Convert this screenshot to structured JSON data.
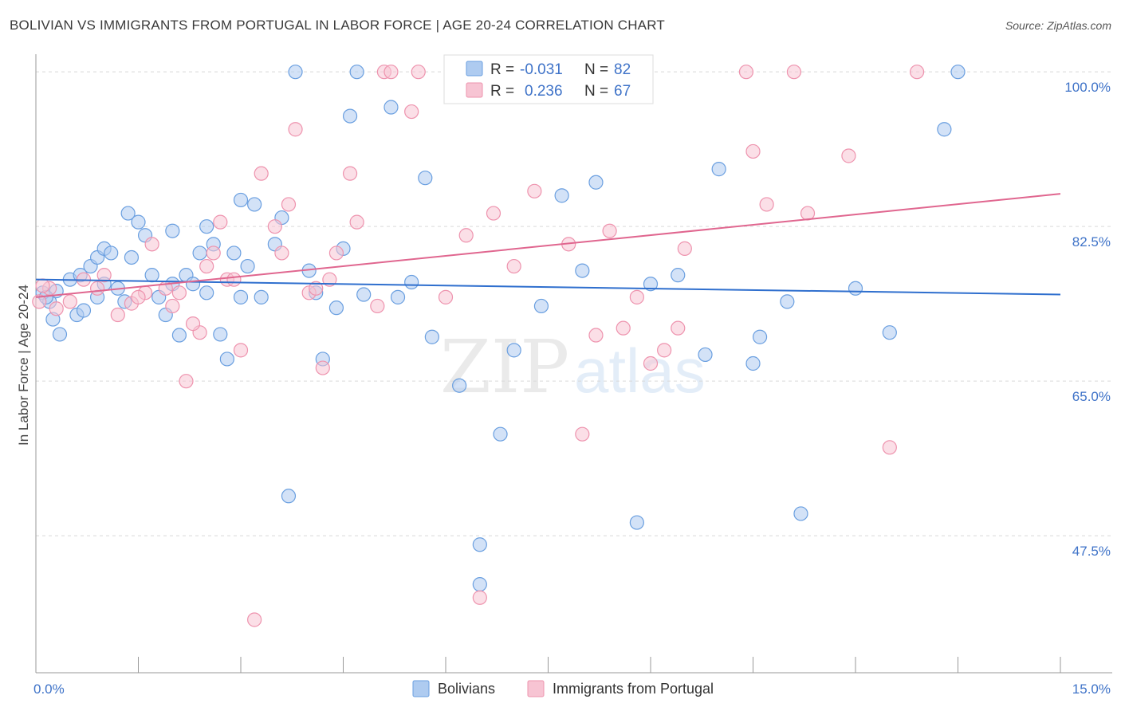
{
  "title": "BOLIVIAN VS IMMIGRANTS FROM PORTUGAL IN LABOR FORCE | AGE 20-24 CORRELATION CHART",
  "source": "Source: ZipAtlas.com",
  "watermark": {
    "zip": "ZIP",
    "atlas": "atlas"
  },
  "colors": {
    "blue_fill": "#aecbf0",
    "blue_stroke": "#6a9fe0",
    "blue_line": "#2f6fce",
    "pink_fill": "#f7c4d3",
    "pink_stroke": "#ee93ae",
    "pink_line": "#e0668f",
    "tick_color": "#3f73c8",
    "grid": "#d9d9d9"
  },
  "stats": {
    "r_label": "R =",
    "n_label": "N =",
    "rows": [
      {
        "r": "-0.031",
        "n": "82"
      },
      {
        "r": "0.236",
        "n": "67"
      }
    ]
  },
  "chart_data": {
    "type": "scatter",
    "title": "BOLIVIAN VS IMMIGRANTS FROM PORTUGAL IN LABOR FORCE | AGE 20-24 CORRELATION CHART",
    "ylabel": "In Labor Force | Age 20-24",
    "xlabel": "",
    "xlim": [
      0,
      15
    ],
    "ylim": [
      32,
      102
    ],
    "x_tick_labels": [
      "0.0%",
      "15.0%"
    ],
    "y_ticks": [
      47.5,
      65.0,
      82.5,
      100.0
    ],
    "y_tick_labels": [
      "47.5%",
      "65.0%",
      "82.5%",
      "100.0%"
    ],
    "grid": "horizontal dashed",
    "legend": [
      "Bolivians",
      "Immigrants from Portugal"
    ],
    "series": [
      {
        "name": "Bolivians",
        "trend": {
          "x": [
            0,
            15
          ],
          "y": [
            76.5,
            74.8
          ]
        },
        "points": [
          [
            0.1,
            75
          ],
          [
            0.2,
            74
          ],
          [
            0.3,
            75.2
          ],
          [
            0.25,
            72
          ],
          [
            0.5,
            76.5
          ],
          [
            0.35,
            70.3
          ],
          [
            0.6,
            72.5
          ],
          [
            0.8,
            78
          ],
          [
            0.9,
            79
          ],
          [
            1.0,
            80
          ],
          [
            1.1,
            79.5
          ],
          [
            1.2,
            75.5
          ],
          [
            0.7,
            73
          ],
          [
            0.65,
            77
          ],
          [
            1.35,
            84
          ],
          [
            1.5,
            83
          ],
          [
            1.6,
            81.5
          ],
          [
            1.7,
            77
          ],
          [
            1.8,
            74.5
          ],
          [
            1.9,
            72.5
          ],
          [
            2.0,
            82
          ],
          [
            2.1,
            70.2
          ],
          [
            2.2,
            77
          ],
          [
            2.3,
            76
          ],
          [
            2.4,
            79.5
          ],
          [
            2.5,
            82.5
          ],
          [
            2.6,
            80.5
          ],
          [
            2.7,
            70.3
          ],
          [
            2.8,
            67.5
          ],
          [
            2.9,
            79.5
          ],
          [
            3.0,
            74.5
          ],
          [
            3.1,
            78
          ],
          [
            3.2,
            85
          ],
          [
            3.3,
            74.5
          ],
          [
            3.5,
            80.5
          ],
          [
            3.6,
            83.5
          ],
          [
            3.7,
            52
          ],
          [
            3.8,
            100
          ],
          [
            4.0,
            77.5
          ],
          [
            4.1,
            75
          ],
          [
            4.2,
            67.5
          ],
          [
            4.4,
            73.3
          ],
          [
            4.5,
            80
          ],
          [
            4.6,
            95
          ],
          [
            4.8,
            74.8
          ],
          [
            4.7,
            100
          ],
          [
            5.2,
            96
          ],
          [
            5.3,
            74.5
          ],
          [
            5.5,
            76.2
          ],
          [
            5.8,
            70
          ],
          [
            6.2,
            64.5
          ],
          [
            6.5,
            46.5
          ],
          [
            6.8,
            59
          ],
          [
            6.9,
            100
          ],
          [
            7.0,
            68.5
          ],
          [
            7.4,
            73.5
          ],
          [
            7.7,
            86
          ],
          [
            8.2,
            87.5
          ],
          [
            8.8,
            49
          ],
          [
            9.0,
            76
          ],
          [
            9.4,
            77
          ],
          [
            9.8,
            68
          ],
          [
            10.0,
            89
          ],
          [
            10.6,
            70
          ],
          [
            11.0,
            74
          ],
          [
            11.2,
            50
          ],
          [
            12.5,
            70.5
          ],
          [
            13.5,
            100
          ],
          [
            13.3,
            93.5
          ],
          [
            12.0,
            75.5
          ],
          [
            0.15,
            74.5
          ],
          [
            1.4,
            79
          ],
          [
            2.0,
            76
          ],
          [
            3.0,
            85.5
          ],
          [
            6.5,
            42
          ],
          [
            5.7,
            88
          ],
          [
            8.0,
            77.5
          ],
          [
            10.5,
            67
          ],
          [
            1.0,
            76
          ],
          [
            2.5,
            75
          ],
          [
            0.9,
            74.5
          ],
          [
            1.3,
            74
          ]
        ]
      },
      {
        "name": "Immigrants from Portugal",
        "trend": {
          "x": [
            0,
            15
          ],
          "y": [
            74.5,
            86.2
          ]
        },
        "points": [
          [
            0.05,
            74
          ],
          [
            0.2,
            75.5
          ],
          [
            0.5,
            74
          ],
          [
            0.7,
            76.5
          ],
          [
            0.9,
            75.5
          ],
          [
            1.0,
            77
          ],
          [
            1.2,
            72.5
          ],
          [
            1.4,
            73.8
          ],
          [
            1.6,
            75
          ],
          [
            1.7,
            80.5
          ],
          [
            1.9,
            75.5
          ],
          [
            2.0,
            73.5
          ],
          [
            2.2,
            65
          ],
          [
            2.4,
            70.5
          ],
          [
            2.3,
            71.5
          ],
          [
            2.5,
            78
          ],
          [
            2.6,
            79.5
          ],
          [
            2.7,
            83
          ],
          [
            2.8,
            76.5
          ],
          [
            3.0,
            68.5
          ],
          [
            3.2,
            38
          ],
          [
            3.3,
            88.5
          ],
          [
            3.5,
            82.5
          ],
          [
            3.6,
            79.5
          ],
          [
            3.7,
            85
          ],
          [
            3.8,
            93.5
          ],
          [
            4.0,
            75
          ],
          [
            4.1,
            75.5
          ],
          [
            4.2,
            66.5
          ],
          [
            4.4,
            79.5
          ],
          [
            4.6,
            88.5
          ],
          [
            4.7,
            83
          ],
          [
            5.0,
            73.5
          ],
          [
            5.1,
            100
          ],
          [
            5.2,
            100
          ],
          [
            5.5,
            95.5
          ],
          [
            6.0,
            74.5
          ],
          [
            6.3,
            81.5
          ],
          [
            6.5,
            40.5
          ],
          [
            6.7,
            84
          ],
          [
            7.0,
            78
          ],
          [
            7.3,
            86.5
          ],
          [
            7.8,
            80.5
          ],
          [
            8.0,
            59
          ],
          [
            8.2,
            70.2
          ],
          [
            8.4,
            82
          ],
          [
            8.6,
            71
          ],
          [
            8.8,
            74.5
          ],
          [
            9.0,
            67
          ],
          [
            9.2,
            68.5
          ],
          [
            9.4,
            71
          ],
          [
            10.4,
            100
          ],
          [
            10.5,
            91
          ],
          [
            10.7,
            85
          ],
          [
            11.1,
            100
          ],
          [
            11.3,
            84
          ],
          [
            11.9,
            90.5
          ],
          [
            12.5,
            57.5
          ],
          [
            12.9,
            100
          ],
          [
            0.3,
            73.2
          ],
          [
            1.5,
            74.5
          ],
          [
            2.9,
            76.5
          ],
          [
            4.3,
            76.5
          ],
          [
            5.6,
            100
          ],
          [
            0.1,
            75.8
          ],
          [
            2.1,
            75
          ],
          [
            9.5,
            80
          ]
        ]
      }
    ]
  }
}
